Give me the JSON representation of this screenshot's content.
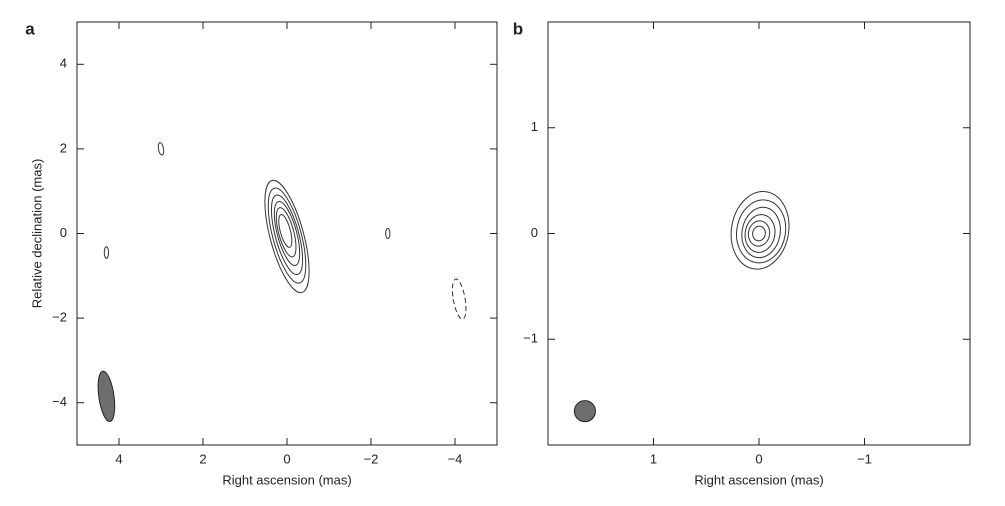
{
  "chart_data": [
    {
      "type": "contour",
      "panel_label": "a",
      "x_label": "Right ascension (mas)",
      "y_label": "Relative declination (mas)",
      "xlim": [
        5,
        -5
      ],
      "ylim": [
        -5,
        5
      ],
      "xticks": [
        4,
        2,
        0,
        {
          "value": -2,
          "label": "−2"
        },
        {
          "value": -4,
          "label": "−4"
        }
      ],
      "yticks": [
        {
          "value": -4,
          "label": "−4"
        },
        {
          "value": -2,
          "label": "−2"
        },
        0,
        2,
        4
      ],
      "color": "#333333",
      "contours": [
        {
          "x": 0,
          "y": -0.07,
          "rx": 0.4,
          "ry": 1.37,
          "angle": 15
        },
        {
          "x": 0,
          "y": -0.05,
          "rx": 0.34,
          "ry": 1.16,
          "angle": 15
        },
        {
          "x": 0,
          "y": -0.03,
          "rx": 0.28,
          "ry": 0.97,
          "angle": 15
        },
        {
          "x": 0,
          "y": 0,
          "rx": 0.23,
          "ry": 0.78,
          "angle": 15
        },
        {
          "x": 0.02,
          "y": 0.03,
          "rx": 0.18,
          "ry": 0.6,
          "angle": 15
        },
        {
          "x": 0.04,
          "y": 0.06,
          "rx": 0.12,
          "ry": 0.4,
          "angle": 15
        },
        {
          "x": 3.0,
          "y": 2.0,
          "rx": 0.06,
          "ry": 0.15,
          "angle": 10
        },
        {
          "x": 4.3,
          "y": -0.45,
          "rx": 0.05,
          "ry": 0.14,
          "angle": 0
        },
        {
          "x": -2.4,
          "y": 0.0,
          "rx": 0.05,
          "ry": 0.12,
          "angle": 0
        },
        {
          "x": -4.1,
          "y": -1.55,
          "rx": 0.14,
          "ry": 0.48,
          "angle": 10,
          "dashed": true
        }
      ],
      "beam": {
        "x": 4.3,
        "y": -3.85,
        "rx": 0.18,
        "ry": 0.6,
        "angle": 8,
        "fill": "#6e6e6e"
      }
    },
    {
      "type": "contour",
      "panel_label": "b",
      "x_label": "Right ascension (mas)",
      "xlim": [
        2,
        -2
      ],
      "ylim": [
        -2,
        2
      ],
      "xticks": [
        1,
        0,
        {
          "value": -1,
          "label": "−1"
        }
      ],
      "yticks": [
        {
          "value": -1,
          "label": "−1"
        },
        0,
        1
      ],
      "color": "#333333",
      "contours": [
        {
          "x": -0.01,
          "y": 0.03,
          "rx": 0.37,
          "ry": 0.27,
          "angle": 80
        },
        {
          "x": -0.02,
          "y": 0.02,
          "rx": 0.3,
          "ry": 0.23,
          "angle": 80
        },
        {
          "x": -0.02,
          "y": 0.01,
          "rx": 0.24,
          "ry": 0.18,
          "angle": 80
        },
        {
          "x": -0.01,
          "y": 0.0,
          "rx": 0.18,
          "ry": 0.14,
          "angle": 80
        },
        {
          "x": 0,
          "y": 0.0,
          "rx": 0.12,
          "ry": 0.1,
          "angle": 80
        },
        {
          "x": 0,
          "y": 0.0,
          "rx": 0.07,
          "ry": 0.06,
          "angle": 80
        }
      ],
      "beam": {
        "x": 1.65,
        "y": -1.68,
        "rx": 0.1,
        "ry": 0.1,
        "angle": 0,
        "fill": "#6e6e6e"
      }
    }
  ]
}
